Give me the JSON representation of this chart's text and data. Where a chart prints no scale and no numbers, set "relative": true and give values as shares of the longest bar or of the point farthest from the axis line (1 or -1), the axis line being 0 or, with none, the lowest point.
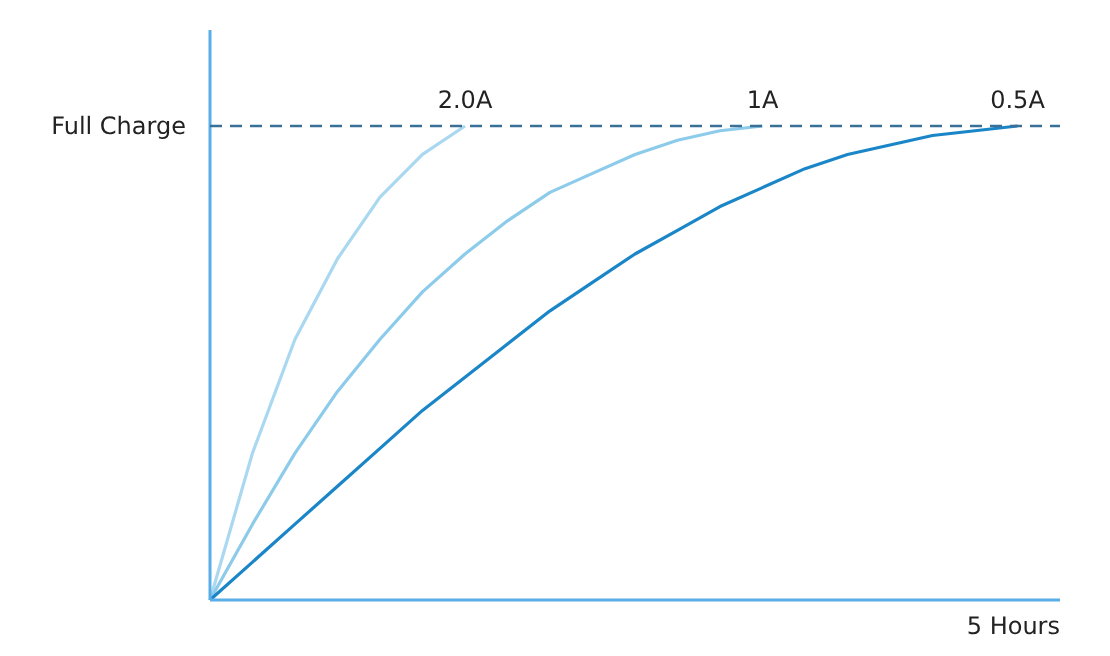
{
  "chart_data": {
    "type": "line",
    "relative": true,
    "xlabel": "5 Hours",
    "marker": "none",
    "line_style": "solid",
    "categories": [
      null,
      null,
      null,
      null,
      null,
      null,
      null,
      null,
      null,
      null,
      null,
      null,
      null,
      null,
      null,
      null,
      null,
      null,
      null,
      null,
      null
    ],
    "series": [
      {
        "name": "2.0A",
        "color": "#a9d8f0",
        "values": [
          0,
          0.31,
          0.55,
          0.72,
          0.85,
          0.94,
          1.0,
          null,
          null,
          null,
          null,
          null,
          null,
          null,
          null,
          null,
          null,
          null,
          null,
          null,
          null
        ]
      },
      {
        "name": "1A",
        "color": "#8ccbea",
        "values": [
          0,
          0.16,
          0.31,
          0.44,
          0.55,
          0.65,
          0.73,
          0.8,
          0.86,
          0.9,
          0.94,
          0.97,
          0.99,
          1.0,
          null,
          null,
          null,
          null,
          null,
          null,
          null
        ]
      },
      {
        "name": "0.5A",
        "color": "#1a86c8",
        "values": [
          0,
          0.08,
          0.16,
          0.24,
          0.32,
          0.4,
          0.47,
          0.54,
          0.61,
          0.67,
          0.73,
          0.78,
          0.83,
          0.87,
          0.91,
          0.94,
          0.96,
          0.98,
          0.99,
          1.0,
          null
        ]
      }
    ],
    "ref_lines": [
      {
        "axis": "y",
        "value": 1,
        "label": "Full Charge",
        "color": "#3a6f98",
        "line_style": "dashed"
      }
    ]
  }
}
